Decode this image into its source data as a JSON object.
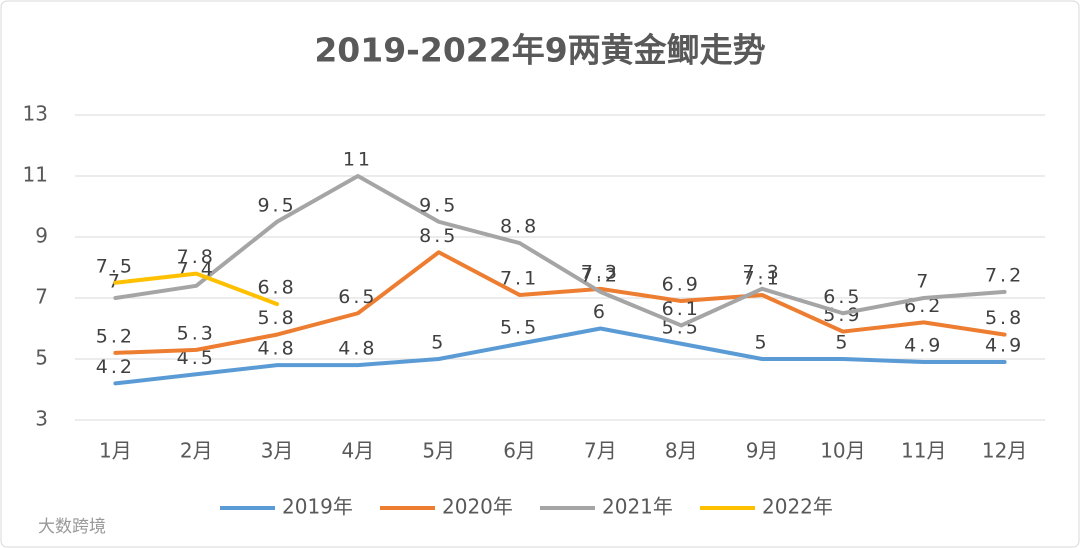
{
  "chart_data": {
    "type": "line",
    "title": "2019-2022年9两黄金鲫走势",
    "categories": [
      "1月",
      "2月",
      "3月",
      "4月",
      "5月",
      "6月",
      "7月",
      "8月",
      "9月",
      "10月",
      "11月",
      "12月"
    ],
    "series": [
      {
        "name": "2019年",
        "color": "#5b9bd5",
        "values": [
          4.2,
          4.5,
          4.8,
          4.8,
          5,
          5.5,
          6,
          5.5,
          5,
          5,
          4.9,
          4.9
        ]
      },
      {
        "name": "2020年",
        "color": "#ed7d31",
        "values": [
          5.2,
          5.3,
          5.8,
          6.5,
          8.5,
          7.1,
          7.3,
          6.9,
          7.1,
          5.9,
          6.2,
          5.8
        ]
      },
      {
        "name": "2021年",
        "color": "#a5a5a5",
        "values": [
          7,
          7.4,
          9.5,
          11,
          9.5,
          8.8,
          7.2,
          6.1,
          7.3,
          6.5,
          7,
          7.2
        ]
      },
      {
        "name": "2022年",
        "color": "#ffc000",
        "values": [
          7.5,
          7.8,
          6.8,
          null,
          null,
          null,
          null,
          null,
          null,
          null,
          null,
          null
        ]
      }
    ],
    "ylim": [
      3,
      13
    ],
    "yticks": [
      3,
      5,
      7,
      9,
      11,
      13
    ],
    "grid": true,
    "legend": "bottom",
    "watermark": "大数跨境"
  }
}
